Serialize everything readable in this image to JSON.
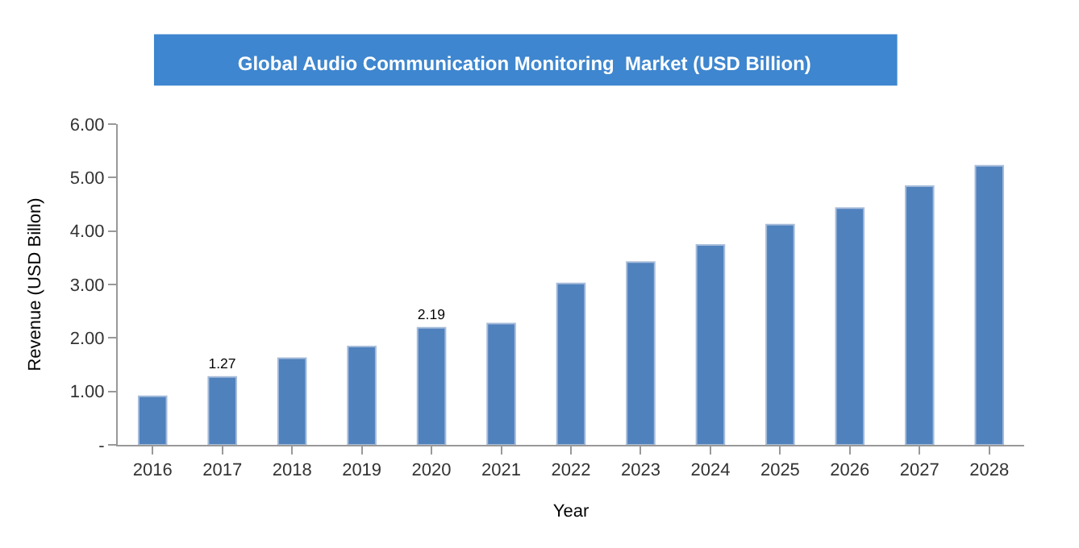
{
  "chart_data": {
    "type": "bar",
    "title": "Global Audio Communication Monitoring  Market (USD Billion)",
    "xlabel": "Year",
    "ylabel": "Revenue (USD Billon)",
    "categories": [
      "2016",
      "2017",
      "2018",
      "2019",
      "2020",
      "2021",
      "2022",
      "2023",
      "2024",
      "2025",
      "2026",
      "2027",
      "2028"
    ],
    "values": [
      0.91,
      1.27,
      1.62,
      1.84,
      2.19,
      2.27,
      3.02,
      3.42,
      3.74,
      4.12,
      4.43,
      4.84,
      5.22
    ],
    "value_labels": [
      null,
      "1.27",
      null,
      null,
      "2.19",
      null,
      null,
      null,
      null,
      null,
      null,
      null,
      null
    ],
    "color": "#4f81bd",
    "ylim": [
      0,
      6
    ],
    "yticks": [
      {
        "value": 0,
        "label": "-"
      },
      {
        "value": 1,
        "label": "1.00"
      },
      {
        "value": 2,
        "label": "2.00"
      },
      {
        "value": 3,
        "label": "3.00"
      },
      {
        "value": 4,
        "label": "4.00"
      },
      {
        "value": 5,
        "label": "5.00"
      },
      {
        "value": 6,
        "label": "6.00"
      }
    ],
    "legend": false
  }
}
